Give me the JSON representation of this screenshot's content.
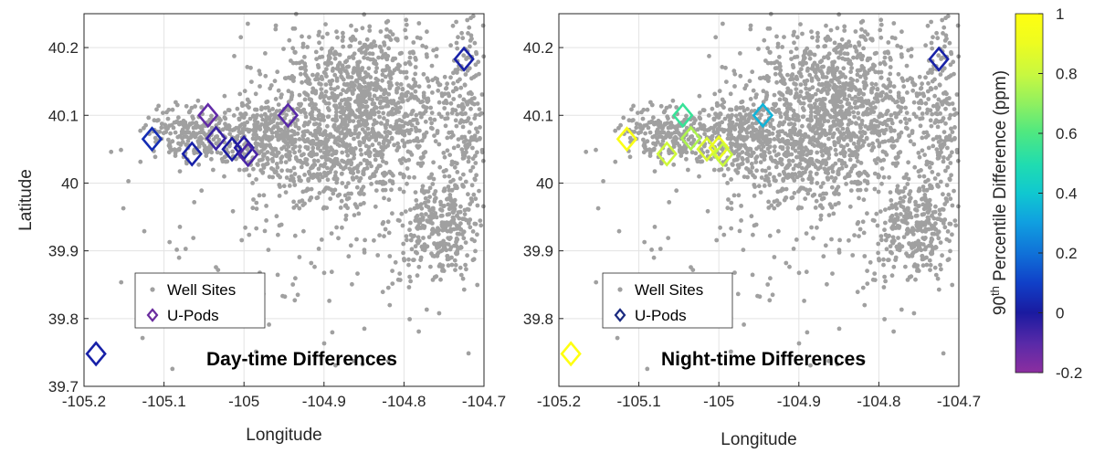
{
  "chart_data": [
    {
      "type": "scatter",
      "title": "",
      "xlabel": "Longitude",
      "ylabel": "Latitude",
      "xlim": [
        -105.2,
        -104.7
      ],
      "ylim": [
        39.7,
        40.25
      ],
      "xticks": [
        "-105.2",
        "-105.1",
        "-105",
        "-104.9",
        "-104.8",
        "-104.7"
      ],
      "yticks": [
        "39.7",
        "39.8",
        "39.9",
        "40",
        "40.1",
        "40.2"
      ],
      "grid": true,
      "legend": {
        "placement": "lower-left",
        "entries": [
          "Well Sites",
          "U-Pods"
        ]
      },
      "annotation": "Day-time Differences",
      "series": [
        {
          "name": "Well Sites",
          "marker": "dot",
          "color": "#a0a0a0",
          "clusters": [
            {
              "lon": -104.85,
              "lat": 40.13,
              "spread_lon": 0.1,
              "spread_lat": 0.09,
              "count": 950
            },
            {
              "lon": -104.88,
              "lat": 40.03,
              "spread_lon": 0.09,
              "spread_lat": 0.07,
              "count": 450
            },
            {
              "lon": -104.98,
              "lat": 40.07,
              "spread_lon": 0.07,
              "spread_lat": 0.04,
              "count": 320
            },
            {
              "lon": -105.07,
              "lat": 40.07,
              "spread_lon": 0.05,
              "spread_lat": 0.04,
              "count": 180
            },
            {
              "lon": -104.76,
              "lat": 39.93,
              "spread_lon": 0.04,
              "spread_lat": 0.06,
              "count": 260
            },
            {
              "lon": -104.72,
              "lat": 40.07,
              "spread_lon": 0.03,
              "spread_lat": 0.15,
              "count": 260
            },
            {
              "lon": -104.9,
              "lat": 39.9,
              "spread_lon": 0.2,
              "spread_lat": 0.15,
              "count": 120
            }
          ]
        },
        {
          "name": "U-Pods",
          "marker": "diamond",
          "points": [
            {
              "lon": -105.185,
              "lat": 39.748,
              "value": 0.02
            },
            {
              "lon": -105.115,
              "lat": 40.065,
              "value": 0.05
            },
            {
              "lon": -105.065,
              "lat": 40.043,
              "value": 0.02
            },
            {
              "lon": -105.045,
              "lat": 40.1,
              "value": -0.12
            },
            {
              "lon": -105.035,
              "lat": 40.066,
              "value": -0.05
            },
            {
              "lon": -105.015,
              "lat": 40.05,
              "value": 0.0
            },
            {
              "lon": -105.0,
              "lat": 40.052,
              "value": -0.02
            },
            {
              "lon": -104.995,
              "lat": 40.042,
              "value": -0.08
            },
            {
              "lon": -104.945,
              "lat": 40.1,
              "value": -0.1
            },
            {
              "lon": -104.725,
              "lat": 40.183,
              "value": 0.02
            }
          ]
        }
      ]
    },
    {
      "type": "scatter",
      "title": "",
      "xlabel": "Longitude",
      "ylabel": "",
      "xlim": [
        -105.2,
        -104.7
      ],
      "ylim": [
        39.7,
        40.25
      ],
      "xticks": [
        "-105.2",
        "-105.1",
        "-105",
        "-104.9",
        "-104.8",
        "-104.7"
      ],
      "yticks": [
        "39.8",
        "39.9",
        "40",
        "40.1",
        "40.2"
      ],
      "grid": true,
      "legend": {
        "placement": "lower-left",
        "entries": [
          "Well Sites",
          "U-Pods"
        ]
      },
      "annotation": "Night-time Differences",
      "series": [
        {
          "name": "Well Sites",
          "marker": "dot",
          "color": "#a0a0a0",
          "clusters": "same as day-time panel"
        },
        {
          "name": "U-Pods",
          "marker": "diamond",
          "points": [
            {
              "lon": -105.185,
              "lat": 39.748,
              "value": 1.0
            },
            {
              "lon": -105.115,
              "lat": 40.065,
              "value": 0.97
            },
            {
              "lon": -105.065,
              "lat": 40.043,
              "value": 0.82
            },
            {
              "lon": -105.045,
              "lat": 40.1,
              "value": 0.55
            },
            {
              "lon": -105.035,
              "lat": 40.066,
              "value": 0.75
            },
            {
              "lon": -105.015,
              "lat": 40.05,
              "value": 0.85
            },
            {
              "lon": -105.0,
              "lat": 40.052,
              "value": 0.9
            },
            {
              "lon": -104.995,
              "lat": 40.042,
              "value": 0.8
            },
            {
              "lon": -104.945,
              "lat": 40.1,
              "value": 0.35
            },
            {
              "lon": -104.725,
              "lat": 40.183,
              "value": 0.02
            }
          ]
        }
      ]
    }
  ],
  "colorbar": {
    "label_prefix": "90",
    "label_sup": "th",
    "label_suffix": " Percentile Difference (ppm)",
    "min": -0.2,
    "max": 1,
    "ticks": [
      "1",
      "0.8",
      "0.6",
      "0.4",
      "0.2",
      "0",
      "-0.2"
    ],
    "colormap": "parula"
  }
}
